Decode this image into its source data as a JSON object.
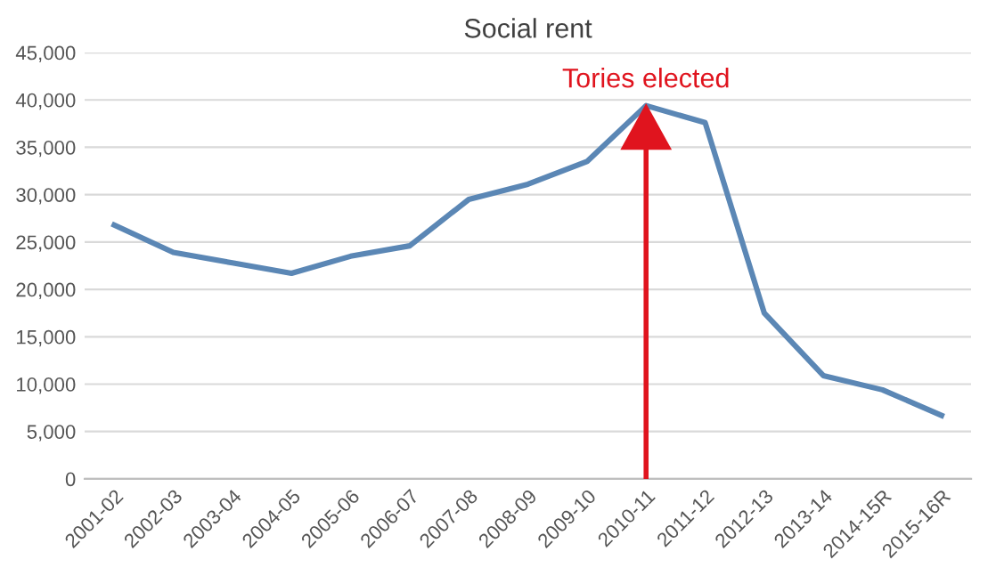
{
  "chart_data": {
    "type": "line",
    "title": "Social rent",
    "categories": [
      "2001-02",
      "2002-03",
      "2003-04",
      "2004-05",
      "2005-06",
      "2006-07",
      "2007-08",
      "2008-09",
      "2009-10",
      "2010-11",
      "2011-12",
      "2012-13",
      "2013-14",
      "2014-15R",
      "2015-16R"
    ],
    "series": [
      {
        "color": "#5b87b5",
        "values": [
          26800,
          23900,
          22800,
          21700,
          23500,
          24600,
          29500,
          31100,
          33500,
          39400,
          37600,
          17500,
          10900,
          9400,
          6700
        ]
      }
    ],
    "ylim": [
      0,
      45000
    ],
    "yticks": [
      {
        "value": 0,
        "label": "0"
      },
      {
        "value": 5000,
        "label": "5,000"
      },
      {
        "value": 10000,
        "label": "10,000"
      },
      {
        "value": 15000,
        "label": "15,000"
      },
      {
        "value": 20000,
        "label": "20,000"
      },
      {
        "value": 25000,
        "label": "25,000"
      },
      {
        "value": 30000,
        "label": "30,000"
      },
      {
        "value": 35000,
        "label": "35,000"
      },
      {
        "value": 40000,
        "label": "40,000"
      },
      {
        "value": 45000,
        "label": "45,000"
      }
    ],
    "grid": "y",
    "legend": false,
    "marker": "none",
    "line_style": "solid",
    "ref_lines": [
      {
        "axis": "x",
        "value": "2010-11",
        "label": "Tories elected",
        "color": "#e0141e"
      }
    ]
  }
}
